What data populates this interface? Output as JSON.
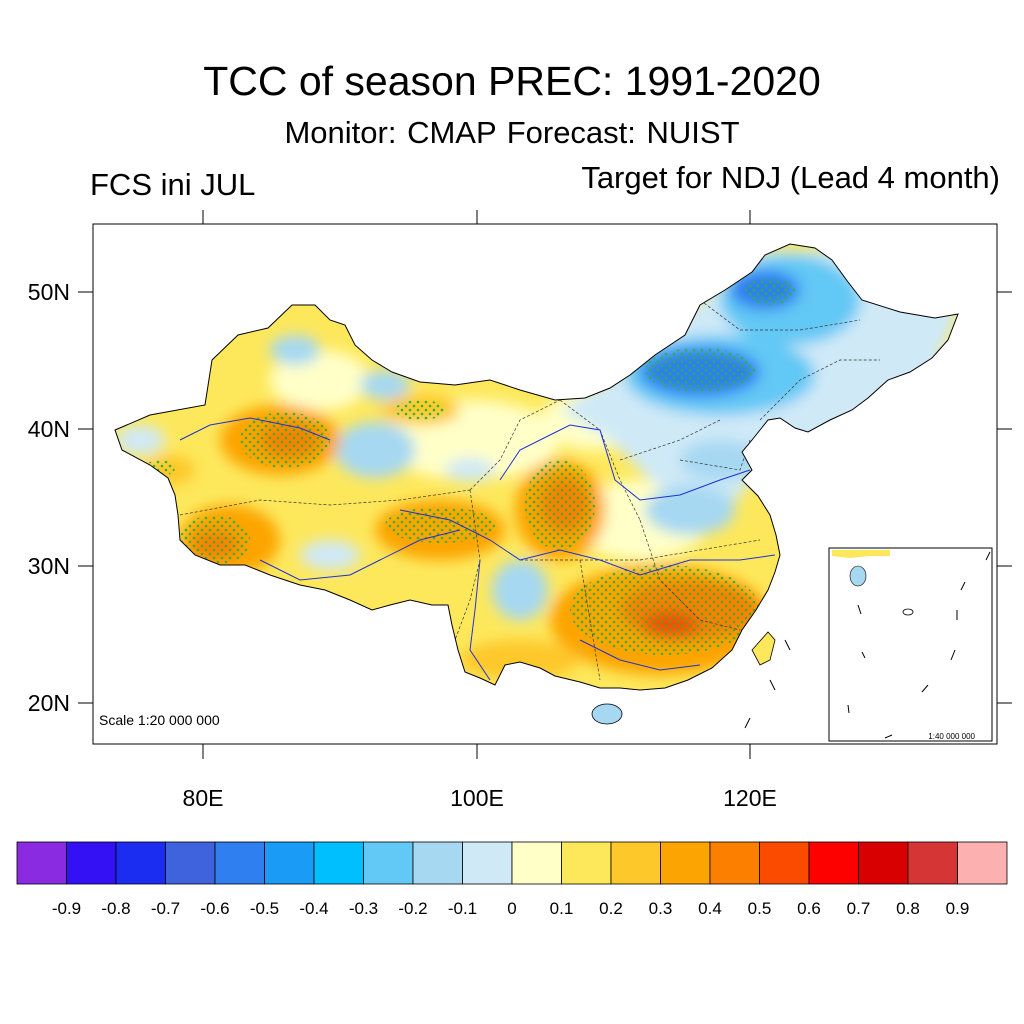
{
  "title": "TCC of season PREC: 1991-2020",
  "subtitle": "Monitor: CMAP   Forecast: NUIST",
  "left_label": "FCS ini JUL",
  "right_label": "Target for NDJ (Lead 4 month)",
  "scale_main": "Scale 1:20 000 000",
  "scale_inset": "1:40 000 000",
  "lat_labels": [
    "50N",
    "40N",
    "30N",
    "20N"
  ],
  "lon_labels": [
    "80E",
    "100E",
    "120E"
  ],
  "colorbar": {
    "colors": [
      "#8a2be2",
      "#3410f5",
      "#1a2df0",
      "#3f63dd",
      "#2f7ff0",
      "#1a9bf5",
      "#00bfff",
      "#62c8f5",
      "#a6d8f2",
      "#cfe9f7",
      "#ffffc8",
      "#fde85c",
      "#fdc829",
      "#fca402",
      "#fc7f00",
      "#fb4b00",
      "#fd0000",
      "#d80000",
      "#d63535",
      "#fdb0b0"
    ],
    "labels": [
      "-0.9",
      "-0.8",
      "-0.7",
      "-0.6",
      "-0.5",
      "-0.4",
      "-0.3",
      "-0.2",
      "-0.1",
      "0",
      "0.1",
      "0.2",
      "0.3",
      "0.4",
      "0.5",
      "0.6",
      "0.7",
      "0.8",
      "0.9"
    ]
  },
  "colors": {
    "stipple": "#2db52d",
    "river": "#1f2fd6",
    "border": "#000000"
  }
}
